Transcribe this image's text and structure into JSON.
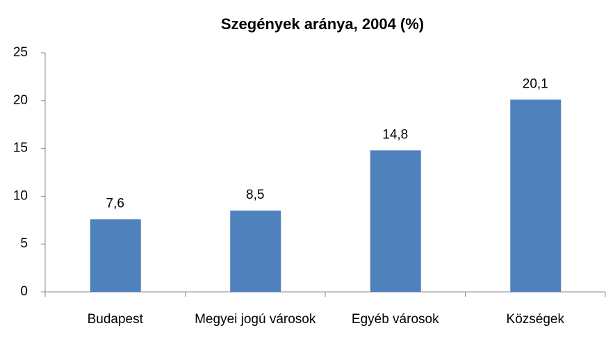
{
  "chart_data": {
    "type": "bar",
    "title": "Szegények aránya, 2004 (%)",
    "categories": [
      "Budapest",
      "Megyei jogú városok",
      "Egyéb városok",
      "Községek"
    ],
    "values": [
      7.6,
      8.5,
      14.8,
      20.1
    ],
    "value_labels": [
      "7,6",
      "8,5",
      "14,8",
      "20,1"
    ],
    "color": "#4f81bd",
    "ylim": [
      0,
      25
    ],
    "yticks": [
      0,
      5,
      10,
      15,
      20,
      25
    ],
    "grid": false
  }
}
